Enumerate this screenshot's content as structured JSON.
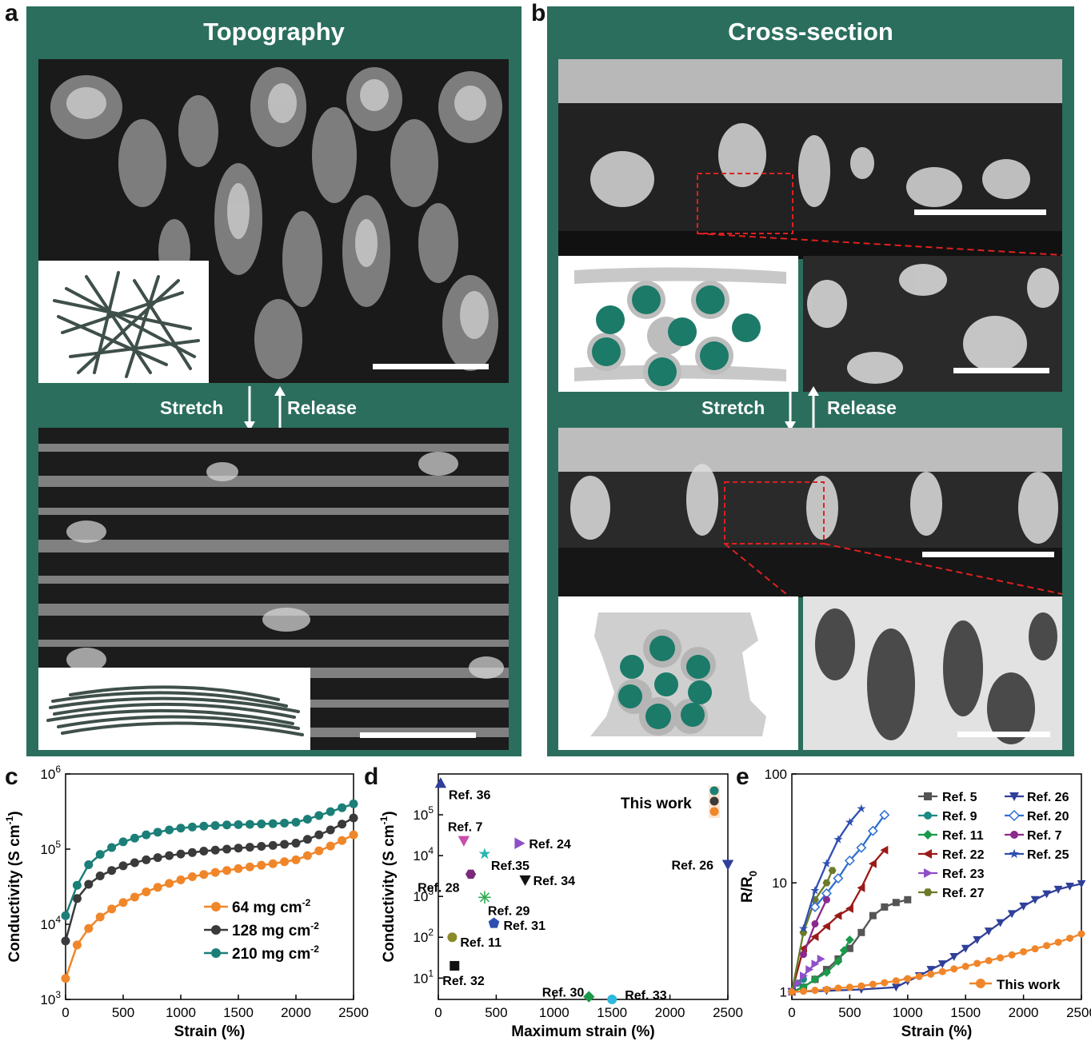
{
  "panels": {
    "a": {
      "letter": "a",
      "title": "Topography",
      "stretch": "Stretch",
      "release": "Release"
    },
    "b": {
      "letter": "b",
      "title": "Cross-section",
      "stretch": "Stretch",
      "release": "Release"
    },
    "c": {
      "letter": "c"
    },
    "d": {
      "letter": "d"
    },
    "e": {
      "letter": "e"
    }
  },
  "colors": {
    "panel_green": "#2b6e5d",
    "teal": "#1b7f78",
    "dark": "#3a3a3a",
    "orange": "#f0862a"
  },
  "chart_data": [
    {
      "id": "c",
      "type": "line",
      "xlabel": "Strain (%)",
      "ylabel": "Conductivity (S cm-1)",
      "yscale": "log",
      "xlim": [
        0,
        2500
      ],
      "ylim": [
        1000,
        1000000
      ],
      "xticks": [
        "0",
        "500",
        "1000",
        "1500",
        "2000",
        "2500"
      ],
      "yticks": [
        "10^3",
        "10^4",
        "10^5",
        "10^6"
      ],
      "legend_position": "lower-right",
      "x": [
        0,
        100,
        200,
        300,
        400,
        500,
        600,
        700,
        800,
        900,
        1000,
        1100,
        1200,
        1300,
        1400,
        1500,
        1600,
        1700,
        1800,
        1900,
        2000,
        2100,
        2200,
        2300,
        2400,
        2500
      ],
      "series": [
        {
          "name": "64 mg cm-2",
          "color": "#f0862a",
          "values": [
            1900,
            5300,
            8800,
            12500,
            16000,
            19500,
            23000,
            27000,
            31000,
            35000,
            39000,
            43000,
            46000,
            49000,
            52000,
            55000,
            58000,
            61000,
            64000,
            68000,
            72000,
            82000,
            95000,
            110000,
            130000,
            155000
          ]
        },
        {
          "name": "128 mg cm-2",
          "color": "#3a3a3a",
          "values": [
            6000,
            22000,
            34000,
            44000,
            52000,
            60000,
            66000,
            72000,
            77000,
            82000,
            86000,
            90000,
            94000,
            97000,
            100000,
            103000,
            106000,
            109000,
            112000,
            116000,
            120000,
            135000,
            155000,
            180000,
            215000,
            260000
          ]
        },
        {
          "name": "210 mg cm-2",
          "color": "#1b7f78",
          "values": [
            13000,
            33000,
            62000,
            85000,
            105000,
            125000,
            140000,
            155000,
            168000,
            180000,
            190000,
            197000,
            202000,
            206000,
            210000,
            212000,
            214000,
            216000,
            218000,
            222000,
            228000,
            250000,
            280000,
            315000,
            355000,
            400000
          ]
        }
      ]
    },
    {
      "id": "d",
      "type": "scatter",
      "xlabel": "Maximum strain (%)",
      "ylabel": "Conductivity (S cm-1)",
      "yscale": "log",
      "xlim": [
        0,
        2500
      ],
      "ylim": [
        3,
        1000000
      ],
      "xticks": [
        "0",
        "500",
        "1000",
        "1500",
        "2000",
        "2500"
      ],
      "yticks": [
        "10^1",
        "10^2",
        "10^3",
        "10^4",
        "10^5"
      ],
      "this_work_label": "This work",
      "points": [
        {
          "label": "Ref. 36",
          "x": 20,
          "y": 600000,
          "marker": "triangle-up",
          "color": "#2f3f9a"
        },
        {
          "label": "Ref. 7",
          "x": 220,
          "y": 23000,
          "marker": "triangle-down",
          "color": "#c94faa"
        },
        {
          "label": "Ref. 24",
          "x": 700,
          "y": 20000,
          "marker": "triangle-right",
          "color": "#8e4fc9"
        },
        {
          "label": "Ref.35",
          "x": 400,
          "y": 11000,
          "marker": "star",
          "color": "#2bb5b0"
        },
        {
          "label": "Ref. 26",
          "x": 2500,
          "y": 6000,
          "marker": "triangle-down",
          "color": "#2f3f9a"
        },
        {
          "label": "Ref. 28",
          "x": 280,
          "y": 3500,
          "marker": "hexagon",
          "color": "#7b2a7b"
        },
        {
          "label": "Ref. 34",
          "x": 750,
          "y": 2500,
          "marker": "triangle-down",
          "color": "#111111"
        },
        {
          "label": "Ref. 29",
          "x": 400,
          "y": 950,
          "marker": "asterisk",
          "color": "#33aa55"
        },
        {
          "label": "Ref. 31",
          "x": 480,
          "y": 220,
          "marker": "pentagon",
          "color": "#2f4fb0"
        },
        {
          "label": "Ref. 11",
          "x": 120,
          "y": 100,
          "marker": "circle",
          "color": "#8a8a2a"
        },
        {
          "label": "Ref. 32",
          "x": 140,
          "y": 20,
          "marker": "square",
          "color": "#111111"
        },
        {
          "label": "Ref. 30",
          "x": 1300,
          "y": 3.5,
          "marker": "diamond",
          "color": "#1a9a4a"
        },
        {
          "label": "Ref. 33",
          "x": 1500,
          "y": 3,
          "marker": "circle",
          "color": "#2eb8e0"
        }
      ]
    },
    {
      "id": "e",
      "type": "line",
      "xlabel": "Strain (%)",
      "ylabel": "R/R0",
      "yscale": "log",
      "xlim": [
        0,
        2500
      ],
      "ylim": [
        0.85,
        100
      ],
      "xticks": [
        "0",
        "500",
        "1000",
        "1500",
        "2000",
        "2500"
      ],
      "yticks": [
        "1",
        "10",
        "100"
      ],
      "legend_position": "top-right",
      "series": [
        {
          "name": "Ref. 5",
          "color": "#555555",
          "marker": "square",
          "x": [
            0,
            100,
            200,
            300,
            400,
            500,
            600,
            700,
            800,
            900,
            1000
          ],
          "values": [
            1,
            1.1,
            1.3,
            1.6,
            2.0,
            2.5,
            3.5,
            5.0,
            6.0,
            6.6,
            7.0
          ]
        },
        {
          "name": "Ref. 9",
          "color": "#1b8a84",
          "marker": "circle",
          "x": [
            0,
            50,
            100
          ],
          "values": [
            1,
            1.2,
            1.3
          ]
        },
        {
          "name": "Ref. 11",
          "color": "#1a9a4a",
          "marker": "diamond",
          "x": [
            0,
            100,
            200,
            300,
            400,
            450,
            500
          ],
          "values": [
            1,
            1.1,
            1.3,
            1.5,
            1.9,
            2.4,
            3.0
          ]
        },
        {
          "name": "Ref. 22",
          "color": "#9a1a1a",
          "marker": "triangle-left",
          "x": [
            0,
            100,
            200,
            300,
            400,
            500,
            600,
            700,
            800
          ],
          "values": [
            1,
            2.5,
            3.2,
            4.0,
            5.0,
            5.8,
            9.0,
            15,
            20
          ]
        },
        {
          "name": "Ref. 23",
          "color": "#8e4fc9",
          "marker": "triangle-right",
          "x": [
            0,
            50,
            100,
            150,
            200,
            250
          ],
          "values": [
            1,
            1.2,
            1.4,
            1.6,
            1.8,
            2.0
          ]
        },
        {
          "name": "Ref. 27",
          "color": "#6b7b2a",
          "marker": "hexagon",
          "x": [
            0,
            100,
            200,
            300,
            350
          ],
          "values": [
            1,
            3.5,
            7.0,
            10,
            13
          ]
        },
        {
          "name": "Ref. 26",
          "color": "#2f3f9a",
          "marker": "triangle-down",
          "x": [
            0,
            300,
            600,
            900,
            1000,
            1100,
            1200,
            1300,
            1400,
            1500,
            1600,
            1700,
            1800,
            1900,
            2000,
            2100,
            2200,
            2300,
            2400,
            2500
          ],
          "values": [
            1,
            1.02,
            1.05,
            1.1,
            1.25,
            1.4,
            1.6,
            1.8,
            2.1,
            2.5,
            3.0,
            3.6,
            4.3,
            5.2,
            6.1,
            7.0,
            7.9,
            8.7,
            9.3,
            9.8
          ]
        },
        {
          "name": "Ref. 20",
          "color": "#2f6fcf",
          "marker": "diamond-open",
          "x": [
            200,
            300,
            400,
            500,
            600,
            700,
            800
          ],
          "values": [
            6,
            8,
            11,
            16,
            21,
            30,
            42
          ]
        },
        {
          "name": "Ref. 7",
          "color": "#8a2a8a",
          "marker": "circle",
          "x": [
            100,
            200,
            300
          ],
          "values": [
            2.2,
            4.2,
            7.0
          ]
        },
        {
          "name": "Ref. 25",
          "color": "#2f4fb0",
          "marker": "star",
          "x": [
            100,
            200,
            300,
            400,
            500,
            600
          ],
          "values": [
            3.8,
            8.5,
            15,
            25,
            36,
            48
          ]
        },
        {
          "name": "This work",
          "color": "#f0862a",
          "marker": "circle",
          "x": [
            0,
            100,
            200,
            300,
            400,
            500,
            600,
            700,
            800,
            900,
            1000,
            1100,
            1200,
            1300,
            1400,
            1500,
            1600,
            1700,
            1800,
            1900,
            2000,
            2100,
            2200,
            2300,
            2400,
            2500
          ],
          "values": [
            1,
            1.01,
            1.03,
            1.05,
            1.08,
            1.1,
            1.13,
            1.17,
            1.21,
            1.26,
            1.32,
            1.38,
            1.45,
            1.53,
            1.62,
            1.71,
            1.82,
            1.93,
            2.05,
            2.18,
            2.33,
            2.48,
            2.65,
            2.85,
            3.1,
            3.4
          ]
        }
      ]
    }
  ]
}
